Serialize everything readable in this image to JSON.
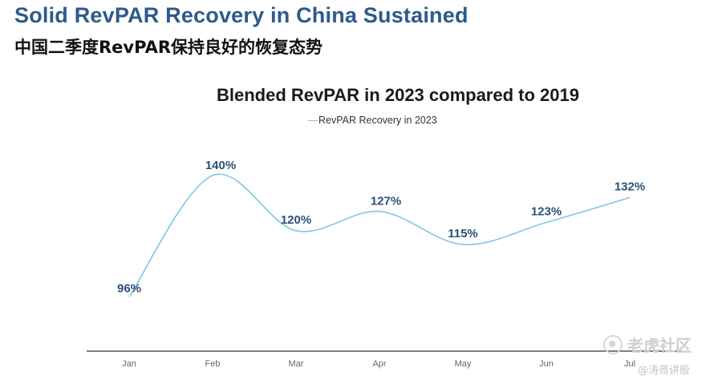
{
  "slide": {
    "title": "Solid RevPAR Recovery in China Sustained",
    "subtitle": "中国二季度RevPAR保持良好的恢复态势"
  },
  "chart_data": {
    "type": "line",
    "title": "Blended RevPAR in 2023 compared to 2019",
    "xlabel": "",
    "ylabel": "",
    "categories": [
      "Jan",
      "Feb",
      "Mar",
      "Apr",
      "May",
      "Jun",
      "Jul"
    ],
    "series": [
      {
        "name": "RevPAR Recovery in 2023",
        "values": [
          96,
          140,
          120,
          127,
          115,
          123,
          132
        ],
        "labels": [
          "96%",
          "140%",
          "120%",
          "127%",
          "115%",
          "123%",
          "132%"
        ],
        "color": "#7ec8e3",
        "smooth": true
      }
    ],
    "legend_position": "top-center",
    "ylim": [
      70,
      160
    ],
    "grid": false,
    "y_axis_visible": false,
    "data_label_color": "#2d4f7a",
    "axis_color": "#555555"
  },
  "watermark": {
    "main": "老虎社区",
    "sub": "@涛哥讲股"
  },
  "colors": {
    "title": "#2d5a8a",
    "series_line": "#7ec8e3"
  }
}
